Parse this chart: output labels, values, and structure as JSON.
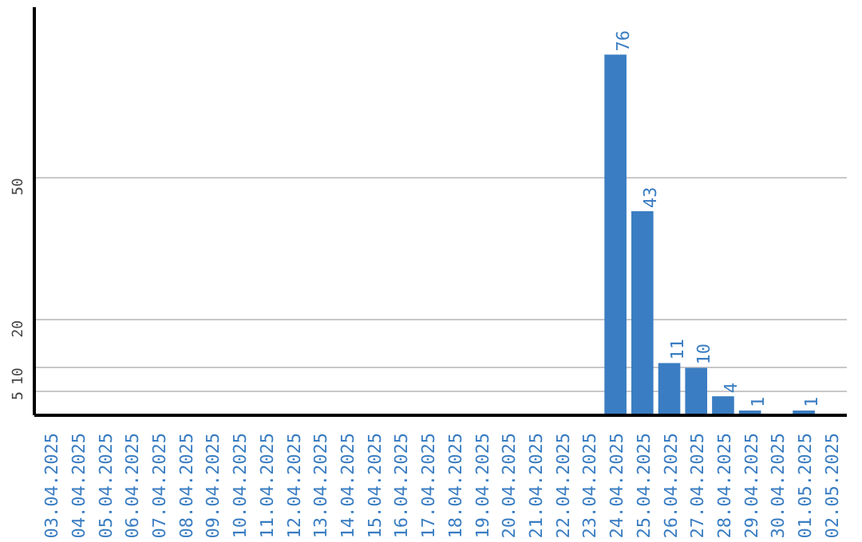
{
  "chart_data": {
    "type": "bar",
    "categories": [
      "03.04.2025",
      "04.04.2025",
      "05.04.2025",
      "06.04.2025",
      "07.04.2025",
      "08.04.2025",
      "09.04.2025",
      "10.04.2025",
      "11.04.2025",
      "12.04.2025",
      "13.04.2025",
      "14.04.2025",
      "15.04.2025",
      "16.04.2025",
      "17.04.2025",
      "18.04.2025",
      "19.04.2025",
      "20.04.2025",
      "21.04.2025",
      "22.04.2025",
      "23.04.2025",
      "24.04.2025",
      "25.04.2025",
      "26.04.2025",
      "27.04.2025",
      "28.04.2025",
      "29.04.2025",
      "30.04.2025",
      "01.05.2025",
      "02.05.2025"
    ],
    "values": [
      0,
      0,
      0,
      0,
      0,
      0,
      0,
      0,
      0,
      0,
      0,
      0,
      0,
      0,
      0,
      0,
      0,
      0,
      0,
      0,
      0,
      76,
      43,
      11,
      10,
      4,
      1,
      0,
      1,
      0
    ],
    "value_labels": [
      null,
      null,
      null,
      null,
      null,
      null,
      null,
      null,
      null,
      null,
      null,
      null,
      null,
      null,
      null,
      null,
      null,
      null,
      null,
      null,
      null,
      "76",
      "43",
      "11",
      "10",
      "4",
      "1",
      null,
      "1",
      null
    ],
    "color": "#3a7dc2",
    "ylim": [
      0,
      86
    ],
    "yticks": [
      5,
      10,
      20,
      50
    ],
    "grid": "y"
  }
}
